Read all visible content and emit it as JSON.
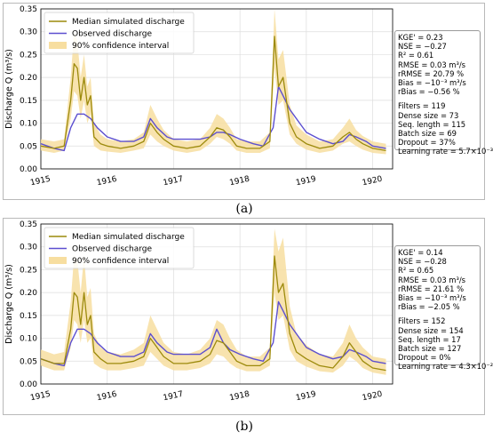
{
  "panels": [
    {
      "label": "(a)",
      "stats_block1": [
        "KGE' = 0.23",
        "NSE = −0.27",
        "R² = 0.61",
        "RMSE = 0.03 m³/s",
        "rRMSE = 20.79 %",
        "Bias = −10⁻³ m³/s",
        "rBias = −0.56 %"
      ],
      "stats_block2": [
        "Filters = 119",
        "Dense size = 73",
        "Seq. length = 115",
        "Batch size = 69",
        "Dropout = 37%",
        "Learning rate = 5.7×10⁻³"
      ]
    },
    {
      "label": "(b)",
      "stats_block1": [
        "KGE' = 0.14",
        "NSE = −0.28",
        "R² = 0.65",
        "RMSE = 0.03 m³/s",
        "rRMSE = 21.61 %",
        "Bias = −10⁻³ m³/s",
        "rBias = −2.05 %"
      ],
      "stats_block2": [
        "Filters = 152",
        "Dense size = 154",
        "Seq. length = 17",
        "Batch size = 127",
        "Dropout = 0%",
        "Learning rate = 4.3×10⁻²"
      ]
    }
  ],
  "colors": {
    "simulated": "#9c8a0c",
    "observed": "#5c4fd0",
    "confidence": "#f7dea0",
    "grid": "#dddddd"
  },
  "chart_data": [
    {
      "type": "line",
      "ylabel": "Discharge Q (m³/s)",
      "ylim": [
        0,
        0.35
      ],
      "yticks": [
        0.0,
        0.05,
        0.1,
        0.15,
        0.2,
        0.25,
        0.3,
        0.35
      ],
      "xlim": [
        1915.0,
        1920.3
      ],
      "xticks": [
        1915,
        1916,
        1917,
        1918,
        1919,
        1920
      ],
      "grid": true,
      "legend_position": "top-left",
      "series": [
        {
          "name": "Median simulated discharge",
          "x": [
            1915.0,
            1915.2,
            1915.35,
            1915.45,
            1915.5,
            1915.55,
            1915.6,
            1915.65,
            1915.7,
            1915.75,
            1915.8,
            1915.9,
            1916.0,
            1916.2,
            1916.4,
            1916.55,
            1916.65,
            1916.75,
            1916.85,
            1917.0,
            1917.2,
            1917.4,
            1917.55,
            1917.65,
            1917.75,
            1917.85,
            1917.95,
            1918.1,
            1918.3,
            1918.45,
            1918.52,
            1918.58,
            1918.65,
            1918.75,
            1918.85,
            1919.0,
            1919.2,
            1919.4,
            1919.55,
            1919.65,
            1919.75,
            1919.85,
            1920.0,
            1920.2
          ],
          "values": [
            0.05,
            0.045,
            0.05,
            0.15,
            0.23,
            0.22,
            0.15,
            0.2,
            0.14,
            0.16,
            0.07,
            0.055,
            0.05,
            0.045,
            0.05,
            0.06,
            0.1,
            0.08,
            0.065,
            0.05,
            0.045,
            0.05,
            0.07,
            0.09,
            0.085,
            0.07,
            0.05,
            0.045,
            0.045,
            0.06,
            0.29,
            0.18,
            0.2,
            0.1,
            0.07,
            0.055,
            0.045,
            0.05,
            0.07,
            0.08,
            0.065,
            0.055,
            0.045,
            0.04
          ]
        },
        {
          "name": "Observed discharge",
          "x": [
            1915.0,
            1915.2,
            1915.35,
            1915.45,
            1915.55,
            1915.65,
            1915.75,
            1915.85,
            1916.0,
            1916.2,
            1916.4,
            1916.55,
            1916.65,
            1916.75,
            1916.9,
            1917.0,
            1917.2,
            1917.4,
            1917.55,
            1917.65,
            1917.75,
            1917.85,
            1918.0,
            1918.2,
            1918.35,
            1918.5,
            1918.58,
            1918.65,
            1918.75,
            1918.9,
            1919.0,
            1919.2,
            1919.4,
            1919.55,
            1919.65,
            1919.75,
            1919.9,
            1920.0,
            1920.2
          ],
          "values": [
            0.055,
            0.045,
            0.04,
            0.09,
            0.12,
            0.12,
            0.11,
            0.09,
            0.07,
            0.06,
            0.06,
            0.07,
            0.11,
            0.09,
            0.07,
            0.065,
            0.065,
            0.065,
            0.07,
            0.08,
            0.08,
            0.075,
            0.065,
            0.055,
            0.05,
            0.09,
            0.18,
            0.16,
            0.13,
            0.1,
            0.08,
            0.065,
            0.055,
            0.06,
            0.075,
            0.07,
            0.06,
            0.05,
            0.045
          ]
        },
        {
          "name": "90% confidence interval",
          "x": [
            1915.0,
            1915.2,
            1915.35,
            1915.45,
            1915.5,
            1915.55,
            1915.6,
            1915.65,
            1915.7,
            1915.75,
            1915.8,
            1915.9,
            1916.0,
            1916.2,
            1916.4,
            1916.55,
            1916.65,
            1916.75,
            1916.85,
            1917.0,
            1917.2,
            1917.4,
            1917.55,
            1917.65,
            1917.75,
            1917.85,
            1917.95,
            1918.1,
            1918.3,
            1918.45,
            1918.52,
            1918.58,
            1918.65,
            1918.75,
            1918.85,
            1919.0,
            1919.2,
            1919.4,
            1919.55,
            1919.65,
            1919.75,
            1919.85,
            1920.0,
            1920.2
          ],
          "lower": [
            0.04,
            0.035,
            0.04,
            0.11,
            0.17,
            0.16,
            0.11,
            0.15,
            0.1,
            0.12,
            0.05,
            0.04,
            0.038,
            0.035,
            0.04,
            0.045,
            0.075,
            0.06,
            0.05,
            0.04,
            0.035,
            0.04,
            0.055,
            0.07,
            0.065,
            0.055,
            0.04,
            0.035,
            0.035,
            0.045,
            0.22,
            0.14,
            0.15,
            0.075,
            0.055,
            0.042,
            0.035,
            0.04,
            0.055,
            0.06,
            0.05,
            0.042,
            0.035,
            0.032
          ],
          "upper": [
            0.065,
            0.06,
            0.065,
            0.2,
            0.3,
            0.28,
            0.2,
            0.25,
            0.18,
            0.2,
            0.1,
            0.075,
            0.065,
            0.06,
            0.065,
            0.08,
            0.14,
            0.11,
            0.085,
            0.065,
            0.06,
            0.065,
            0.09,
            0.12,
            0.11,
            0.09,
            0.065,
            0.06,
            0.06,
            0.08,
            0.35,
            0.24,
            0.26,
            0.14,
            0.095,
            0.075,
            0.06,
            0.065,
            0.09,
            0.11,
            0.085,
            0.072,
            0.06,
            0.055
          ]
        }
      ]
    },
    {
      "type": "line",
      "ylabel": "Discharge Q (m³/s)",
      "ylim": [
        0,
        0.35
      ],
      "yticks": [
        0.0,
        0.05,
        0.1,
        0.15,
        0.2,
        0.25,
        0.3,
        0.35
      ],
      "xlim": [
        1915.0,
        1920.3
      ],
      "xticks": [
        1915,
        1916,
        1917,
        1918,
        1919,
        1920
      ],
      "grid": true,
      "legend_position": "top-left",
      "series": [
        {
          "name": "Median simulated discharge",
          "x": [
            1915.0,
            1915.2,
            1915.35,
            1915.45,
            1915.5,
            1915.55,
            1915.6,
            1915.65,
            1915.7,
            1915.75,
            1915.8,
            1915.9,
            1916.0,
            1916.2,
            1916.4,
            1916.55,
            1916.65,
            1916.75,
            1916.85,
            1917.0,
            1917.2,
            1917.4,
            1917.55,
            1917.65,
            1917.75,
            1917.85,
            1917.95,
            1918.1,
            1918.3,
            1918.45,
            1918.52,
            1918.58,
            1918.65,
            1918.75,
            1918.85,
            1919.0,
            1919.2,
            1919.4,
            1919.55,
            1919.65,
            1919.75,
            1919.85,
            1920.0,
            1920.2
          ],
          "values": [
            0.055,
            0.045,
            0.045,
            0.12,
            0.2,
            0.19,
            0.13,
            0.2,
            0.13,
            0.15,
            0.07,
            0.055,
            0.045,
            0.045,
            0.05,
            0.06,
            0.1,
            0.08,
            0.06,
            0.045,
            0.045,
            0.05,
            0.065,
            0.095,
            0.09,
            0.07,
            0.05,
            0.04,
            0.04,
            0.055,
            0.28,
            0.2,
            0.22,
            0.11,
            0.07,
            0.055,
            0.04,
            0.035,
            0.06,
            0.09,
            0.07,
            0.05,
            0.035,
            0.03
          ]
        },
        {
          "name": "Observed discharge",
          "x": [
            1915.0,
            1915.2,
            1915.35,
            1915.45,
            1915.55,
            1915.65,
            1915.75,
            1915.85,
            1916.0,
            1916.2,
            1916.4,
            1916.55,
            1916.65,
            1916.75,
            1916.9,
            1917.0,
            1917.2,
            1917.4,
            1917.55,
            1917.65,
            1917.75,
            1917.85,
            1918.0,
            1918.2,
            1918.35,
            1918.5,
            1918.58,
            1918.65,
            1918.75,
            1918.9,
            1919.0,
            1919.2,
            1919.4,
            1919.55,
            1919.65,
            1919.75,
            1919.9,
            1920.0,
            1920.2
          ],
          "values": [
            0.055,
            0.045,
            0.04,
            0.09,
            0.12,
            0.12,
            0.11,
            0.09,
            0.07,
            0.06,
            0.06,
            0.07,
            0.11,
            0.09,
            0.07,
            0.065,
            0.065,
            0.065,
            0.08,
            0.12,
            0.09,
            0.075,
            0.065,
            0.055,
            0.05,
            0.09,
            0.18,
            0.16,
            0.13,
            0.1,
            0.08,
            0.065,
            0.055,
            0.06,
            0.075,
            0.07,
            0.06,
            0.05,
            0.045
          ]
        },
        {
          "name": "90% confidence interval",
          "x": [
            1915.0,
            1915.2,
            1915.35,
            1915.45,
            1915.5,
            1915.55,
            1915.6,
            1915.65,
            1915.7,
            1915.75,
            1915.8,
            1915.9,
            1916.0,
            1916.2,
            1916.4,
            1916.55,
            1916.65,
            1916.75,
            1916.85,
            1917.0,
            1917.2,
            1917.4,
            1917.55,
            1917.65,
            1917.75,
            1917.85,
            1917.95,
            1918.1,
            1918.3,
            1918.45,
            1918.52,
            1918.58,
            1918.65,
            1918.75,
            1918.85,
            1919.0,
            1919.2,
            1919.4,
            1919.55,
            1919.65,
            1919.75,
            1919.85,
            1920.0,
            1920.2
          ],
          "lower": [
            0.04,
            0.03,
            0.03,
            0.08,
            0.14,
            0.13,
            0.09,
            0.14,
            0.09,
            0.1,
            0.045,
            0.035,
            0.03,
            0.03,
            0.035,
            0.04,
            0.07,
            0.055,
            0.04,
            0.03,
            0.03,
            0.035,
            0.045,
            0.065,
            0.06,
            0.045,
            0.035,
            0.028,
            0.028,
            0.04,
            0.2,
            0.14,
            0.15,
            0.075,
            0.05,
            0.038,
            0.028,
            0.025,
            0.04,
            0.06,
            0.05,
            0.035,
            0.025,
            0.02
          ],
          "upper": [
            0.075,
            0.065,
            0.07,
            0.18,
            0.28,
            0.27,
            0.2,
            0.28,
            0.19,
            0.21,
            0.11,
            0.08,
            0.07,
            0.065,
            0.075,
            0.09,
            0.15,
            0.12,
            0.09,
            0.07,
            0.065,
            0.075,
            0.1,
            0.14,
            0.13,
            0.1,
            0.075,
            0.06,
            0.06,
            0.08,
            0.34,
            0.29,
            0.32,
            0.17,
            0.11,
            0.085,
            0.065,
            0.06,
            0.09,
            0.13,
            0.1,
            0.08,
            0.06,
            0.055
          ]
        }
      ]
    }
  ]
}
